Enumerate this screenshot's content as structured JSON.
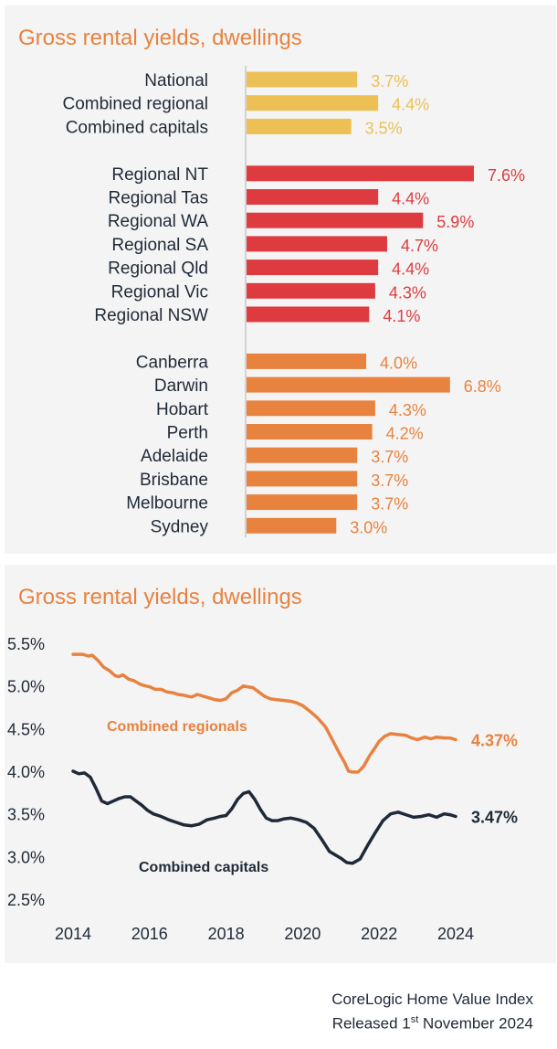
{
  "colors": {
    "summary": "#ecc055",
    "regional": "#dd3b3f",
    "capitals": "#e8823f",
    "regionals_line": "#e8823f",
    "capitals_line": "#1f2a38",
    "title": "#e8823f"
  },
  "chart_data": [
    {
      "type": "bar",
      "orientation": "horizontal",
      "title": "Gross rental yields, dwellings",
      "groups": [
        {
          "name": "summary",
          "color_key": "summary",
          "categories": [
            "National",
            "Combined regional",
            "Combined capitals"
          ],
          "values": [
            3.7,
            4.4,
            3.5
          ],
          "labels": [
            "3.7%",
            "4.4%",
            "3.5%"
          ]
        },
        {
          "name": "regional",
          "color_key": "regional",
          "categories": [
            "Regional NT",
            "Regional Tas",
            "Regional WA",
            "Regional SA",
            "Regional Qld",
            "Regional Vic",
            "Regional NSW"
          ],
          "values": [
            7.6,
            4.4,
            5.9,
            4.7,
            4.4,
            4.3,
            4.1
          ],
          "labels": [
            "7.6%",
            "4.4%",
            "5.9%",
            "4.7%",
            "4.4%",
            "4.3%",
            "4.1%"
          ]
        },
        {
          "name": "capitals",
          "color_key": "capitals",
          "categories": [
            "Canberra",
            "Darwin",
            "Hobart",
            "Perth",
            "Adelaide",
            "Brisbane",
            "Melbourne",
            "Sydney"
          ],
          "values": [
            4.0,
            6.8,
            4.3,
            4.2,
            3.7,
            3.7,
            3.7,
            3.0
          ],
          "labels": [
            "4.0%",
            "6.8%",
            "4.3%",
            "4.2%",
            "3.7%",
            "3.7%",
            "3.7%",
            "3.0%"
          ]
        }
      ],
      "xlim": [
        0,
        7.6
      ],
      "grid": false
    },
    {
      "type": "line",
      "title": "Gross rental yields, dwellings",
      "xlim": [
        2014,
        2024.5
      ],
      "ylim": [
        2.5,
        5.5
      ],
      "x_ticks": [
        "2014",
        "2016",
        "2018",
        "2020",
        "2022",
        "2024"
      ],
      "y_ticks": [
        "5.5%",
        "5.0%",
        "4.5%",
        "4.0%",
        "3.5%",
        "3.0%",
        "2.5%"
      ],
      "grid": false,
      "series": [
        {
          "name": "Combined regionals",
          "color_key": "regionals_line",
          "end_label": "4.37%",
          "x": [
            2014.0,
            2014.25,
            2014.4,
            2014.5,
            2014.65,
            2014.8,
            2014.95,
            2015.1,
            2015.2,
            2015.3,
            2015.45,
            2015.6,
            2015.75,
            2015.9,
            2016.0,
            2016.15,
            2016.3,
            2016.45,
            2016.6,
            2016.75,
            2016.9,
            2017.0,
            2017.1,
            2017.25,
            2017.4,
            2017.55,
            2017.7,
            2017.85,
            2018.0,
            2018.15,
            2018.3,
            2018.45,
            2018.55,
            2018.7,
            2018.85,
            2019.0,
            2019.15,
            2019.3,
            2019.5,
            2019.7,
            2019.85,
            2020.0,
            2020.2,
            2020.4,
            2020.6,
            2020.8,
            2020.95,
            2021.1,
            2021.2,
            2021.3,
            2021.45,
            2021.6,
            2021.75,
            2021.9,
            2022.0,
            2022.15,
            2022.3,
            2022.5,
            2022.7,
            2022.85,
            2023.0,
            2023.2,
            2023.35,
            2023.5,
            2023.7,
            2023.85,
            2024.0
          ],
          "y": [
            5.37,
            5.37,
            5.35,
            5.36,
            5.3,
            5.22,
            5.18,
            5.12,
            5.11,
            5.13,
            5.08,
            5.06,
            5.02,
            5.0,
            4.99,
            4.96,
            4.96,
            4.93,
            4.92,
            4.9,
            4.89,
            4.88,
            4.87,
            4.9,
            4.88,
            4.86,
            4.84,
            4.83,
            4.85,
            4.92,
            4.95,
            5.0,
            4.99,
            4.98,
            4.93,
            4.88,
            4.85,
            4.84,
            4.83,
            4.82,
            4.8,
            4.77,
            4.7,
            4.62,
            4.52,
            4.35,
            4.22,
            4.1,
            4.0,
            3.99,
            3.99,
            4.06,
            4.18,
            4.28,
            4.35,
            4.41,
            4.44,
            4.43,
            4.42,
            4.39,
            4.37,
            4.4,
            4.38,
            4.4,
            4.39,
            4.39,
            4.37
          ]
        },
        {
          "name": "Combined capitals",
          "color_key": "capitals_line",
          "end_label": "3.47%",
          "x": [
            2014.0,
            2014.15,
            2014.3,
            2014.45,
            2014.6,
            2014.75,
            2014.9,
            2015.05,
            2015.2,
            2015.35,
            2015.5,
            2015.65,
            2015.8,
            2015.95,
            2016.1,
            2016.3,
            2016.5,
            2016.7,
            2016.9,
            2017.1,
            2017.3,
            2017.5,
            2017.7,
            2017.85,
            2018.0,
            2018.15,
            2018.3,
            2018.45,
            2018.6,
            2018.75,
            2018.9,
            2019.05,
            2019.2,
            2019.35,
            2019.5,
            2019.7,
            2019.9,
            2020.1,
            2020.3,
            2020.5,
            2020.7,
            2020.85,
            2021.0,
            2021.15,
            2021.3,
            2021.5,
            2021.7,
            2021.9,
            2022.1,
            2022.3,
            2022.5,
            2022.7,
            2022.9,
            2023.1,
            2023.3,
            2023.5,
            2023.7,
            2023.85,
            2024.0
          ],
          "y": [
            4.0,
            3.97,
            3.98,
            3.93,
            3.8,
            3.65,
            3.62,
            3.65,
            3.68,
            3.7,
            3.7,
            3.65,
            3.6,
            3.54,
            3.5,
            3.47,
            3.43,
            3.4,
            3.37,
            3.36,
            3.38,
            3.43,
            3.45,
            3.47,
            3.48,
            3.56,
            3.67,
            3.74,
            3.76,
            3.67,
            3.55,
            3.45,
            3.42,
            3.42,
            3.44,
            3.45,
            3.43,
            3.4,
            3.33,
            3.2,
            3.06,
            3.02,
            2.98,
            2.93,
            2.92,
            2.97,
            3.13,
            3.28,
            3.42,
            3.5,
            3.52,
            3.49,
            3.46,
            3.47,
            3.49,
            3.46,
            3.5,
            3.49,
            3.47
          ]
        }
      ]
    }
  ],
  "line_annotations": {
    "regionals": "Combined regionals",
    "capitals": "Combined capitals"
  },
  "footer": {
    "line1": "CoreLogic Home Value Index",
    "line2_prefix": "Released 1",
    "line2_sup": "st",
    "line2_suffix": " November 2024"
  }
}
